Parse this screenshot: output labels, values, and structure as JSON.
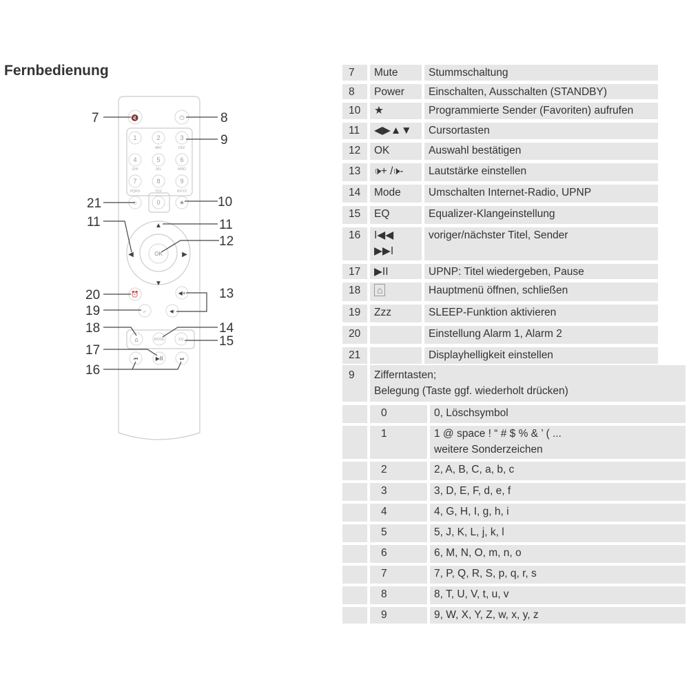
{
  "heading": "Fernbedienung",
  "callouts": {
    "mute": "7",
    "power": "8",
    "digits": "9",
    "favorites": "10",
    "cursor_left": "11",
    "cursor_up": "11",
    "ok": "12",
    "volume": "13",
    "mode": "14",
    "eq": "15",
    "skip": "16",
    "play_pause": "17",
    "home": "18",
    "sleep": "19",
    "alarm": "20",
    "dimmer": "21"
  },
  "remote_keys": {
    "digits": [
      "1",
      "2",
      "3",
      "4",
      "5",
      "6",
      "7",
      "8",
      "9",
      "0"
    ],
    "sub": [
      "ABC",
      "DEF",
      "GHI",
      "JKL",
      "MNO",
      "PQRS",
      "TUV",
      "WXYZ"
    ],
    "ok": "OK",
    "mode": "MODE",
    "eq": "EQ"
  },
  "functions": [
    {
      "num": "7",
      "key": "Mute",
      "desc": "Stummschaltung"
    },
    {
      "num": "8",
      "key": "Power",
      "desc": "Einschalten, Ausschalten (STANDBY)"
    },
    {
      "num": "10",
      "key": "★",
      "desc": "Programmierte Sender (Favoriten) aufrufen"
    },
    {
      "num": "11",
      "key": "◀▶▲▼",
      "desc": "Cursortasten"
    },
    {
      "num": "12",
      "key": "OK",
      "desc": "Auswahl bestätigen"
    },
    {
      "num": "13",
      "key": "🕩+ /🕩-",
      "desc": "Lautstärke einstellen"
    },
    {
      "num": "14",
      "key": "Mode",
      "desc": "Umschalten Internet-Radio, UPNP"
    },
    {
      "num": "15",
      "key": "EQ",
      "desc": "Equalizer-Klangeinstellung"
    },
    {
      "num": "16",
      "key": "I◀◀\n▶▶I",
      "desc": "voriger/nächster Titel, Sender"
    },
    {
      "num": "17",
      "key": "▶II",
      "desc": "UPNP: Titel wiedergeben, Pause"
    },
    {
      "num": "18",
      "key": "",
      "icon": "home-icon",
      "desc": "Hauptmenü öffnen, schließen"
    },
    {
      "num": "19",
      "key": "Zzz",
      "desc": "SLEEP-Funktion aktivieren"
    },
    {
      "num": "20",
      "key": "",
      "desc": "Einstellung Alarm 1, Alarm 2"
    },
    {
      "num": "21",
      "key": "",
      "desc": "Displayhelligkeit einstellen"
    }
  ],
  "digit_table": {
    "num": "9",
    "title": "Zifferntasten;\nBelegung (Taste ggf. wiederholt drücken)",
    "rows": [
      {
        "key": "0",
        "chars": "0, Löschsymbol"
      },
      {
        "key": "1",
        "chars": "1 @ space ! “ # $ % & ’ ( ...\nweitere Sonderzeichen"
      },
      {
        "key": "2",
        "chars": "2, A, B, C, a, b, c"
      },
      {
        "key": "3",
        "chars": "3, D, E, F, d, e, f"
      },
      {
        "key": "4",
        "chars": "4, G, H, I, g, h, i"
      },
      {
        "key": "5",
        "chars": "5, J, K, L, j, k, l"
      },
      {
        "key": "6",
        "chars": "6, M, N, O, m, n, o"
      },
      {
        "key": "7",
        "chars": "7, P, Q, R, S, p, q, r, s"
      },
      {
        "key": "8",
        "chars": "8, T, U, V, t, u, v"
      },
      {
        "key": "9",
        "chars": "9, W, X, Y, Z, w, x, y, z"
      }
    ]
  },
  "colors": {
    "cell_bg": "#e6e6e6",
    "text": "#333333",
    "remote_outline": "#cccccc"
  }
}
